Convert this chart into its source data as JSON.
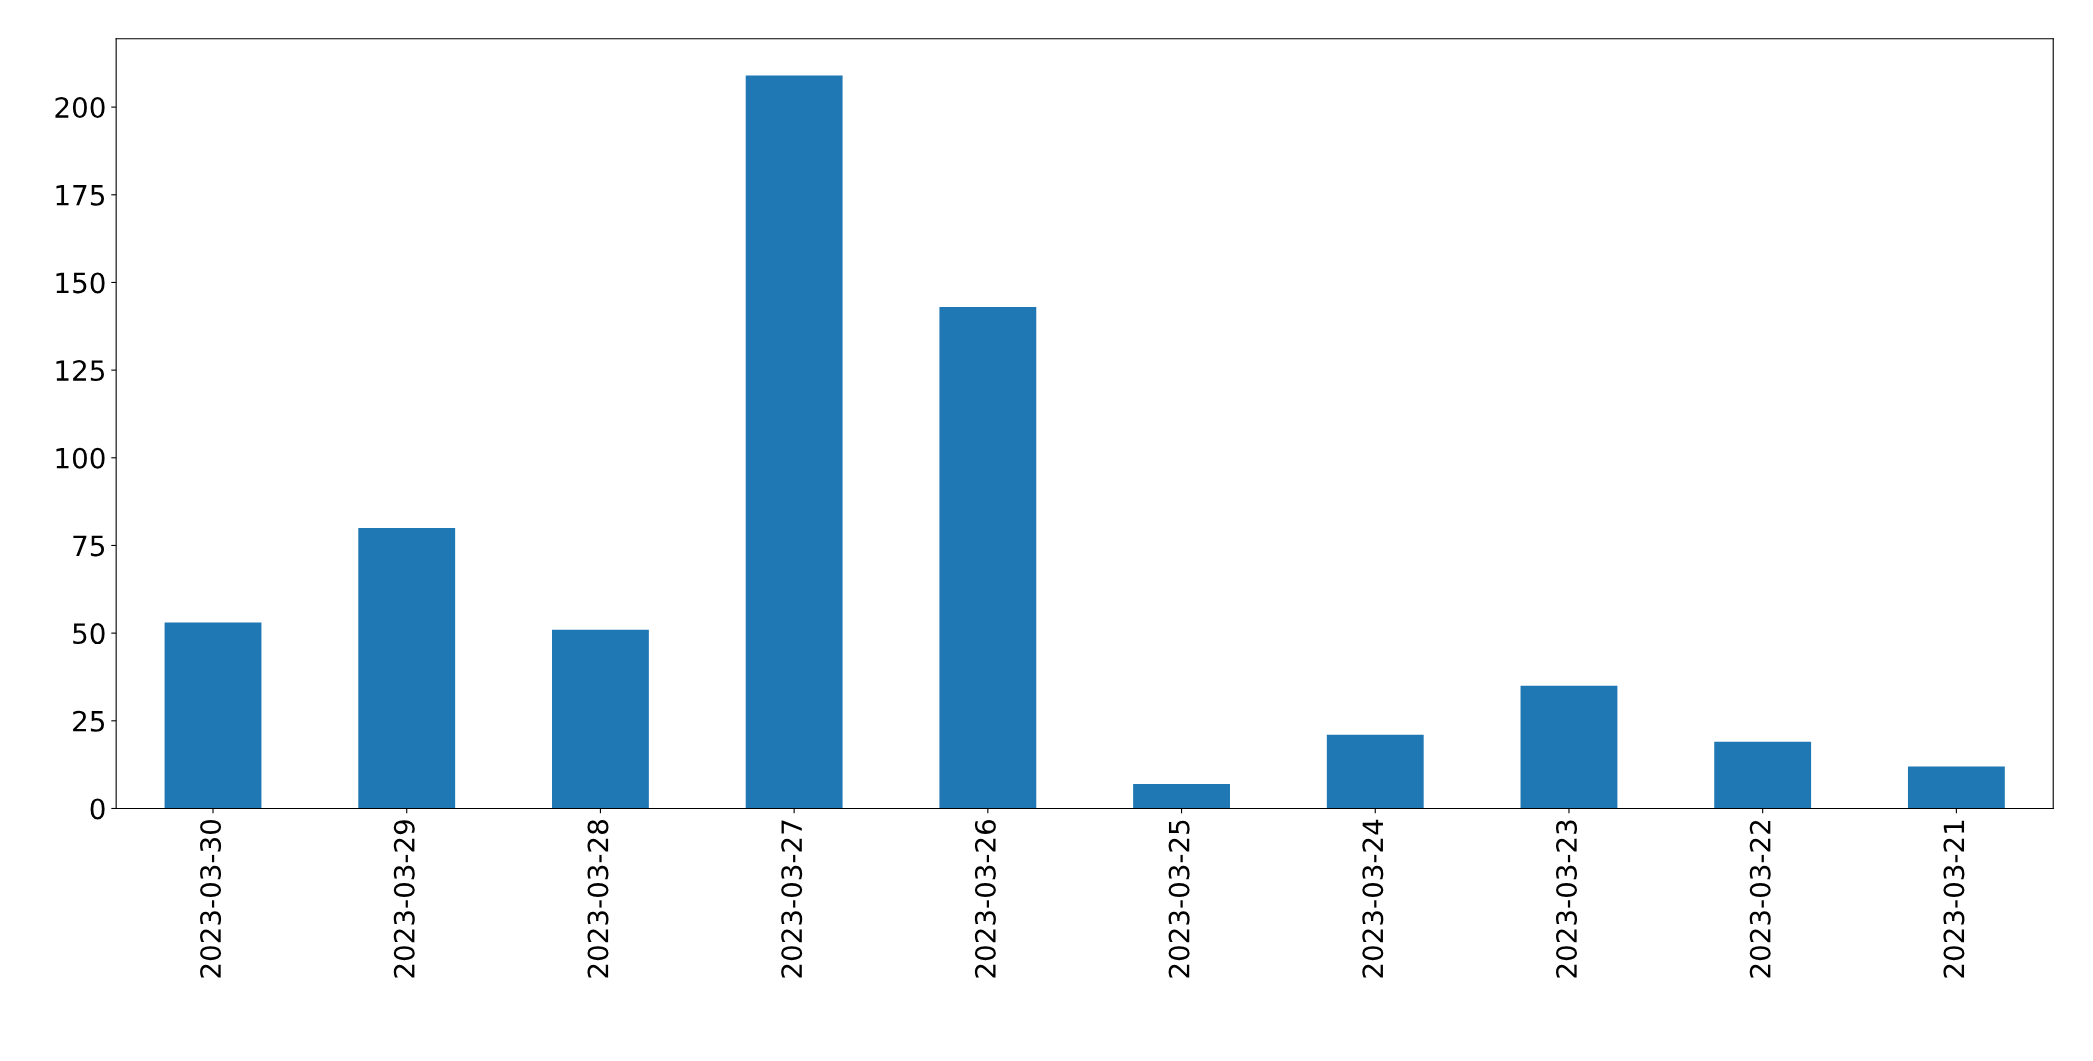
{
  "chart_data": {
    "type": "bar",
    "categories": [
      "2023-03-30",
      "2023-03-29",
      "2023-03-28",
      "2023-03-27",
      "2023-03-26",
      "2023-03-25",
      "2023-03-24",
      "2023-03-23",
      "2023-03-22",
      "2023-03-21"
    ],
    "values": [
      53,
      80,
      51,
      209,
      143,
      7,
      21,
      35,
      19,
      12
    ],
    "color": "#1f77b4",
    "ylim": [
      0,
      219.5
    ],
    "yticks": [
      0,
      25,
      50,
      75,
      100,
      125,
      150,
      175,
      200
    ],
    "grid": false
  }
}
